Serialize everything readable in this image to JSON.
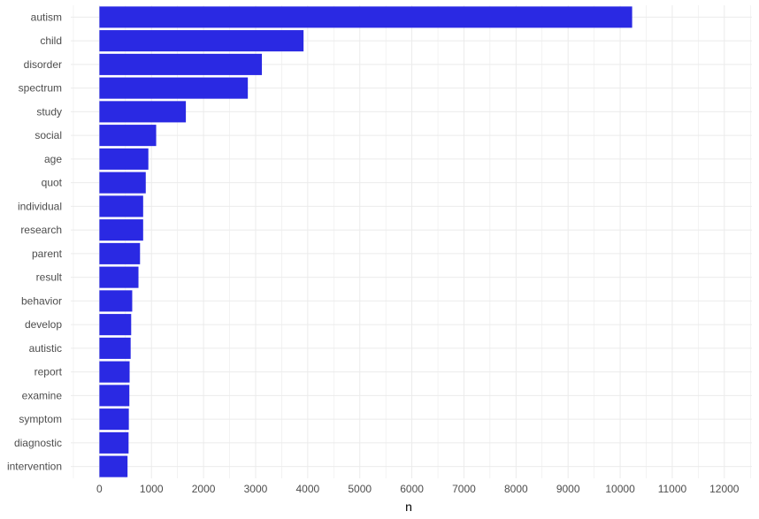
{
  "chart_data": {
    "type": "bar",
    "orientation": "horizontal",
    "categories": [
      "autism",
      "child",
      "disorder",
      "spectrum",
      "study",
      "social",
      "age",
      "quot",
      "individual",
      "research",
      "parent",
      "result",
      "behavior",
      "develop",
      "autistic",
      "report",
      "examine",
      "symptom",
      "diagnostic",
      "intervention"
    ],
    "values": [
      10230,
      3920,
      3120,
      2850,
      1660,
      1090,
      940,
      890,
      840,
      840,
      780,
      750,
      630,
      610,
      600,
      580,
      575,
      565,
      560,
      540
    ],
    "xlabel": "n",
    "ylabel": "",
    "xlim": [
      -550,
      12530
    ],
    "xticks": [
      "0",
      "1000",
      "2000",
      "3000",
      "4000",
      "5000",
      "6000",
      "7000",
      "8000",
      "9000",
      "10000",
      "11000",
      "12000"
    ],
    "grid": true,
    "legend": "none",
    "colors": {
      "bar": "#2a29e3",
      "grid": "#ebebeb",
      "text": "#4d4d4d"
    }
  }
}
